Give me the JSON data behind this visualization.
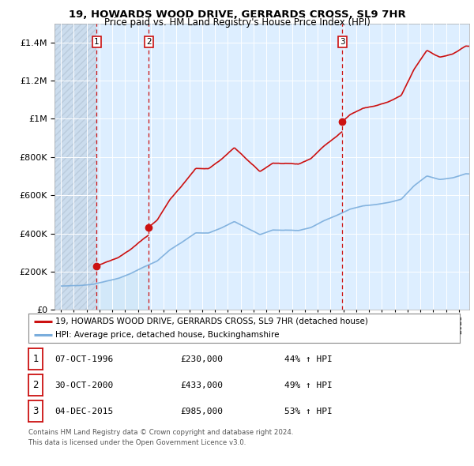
{
  "title": "19, HOWARDS WOOD DRIVE, GERRARDS CROSS, SL9 7HR",
  "subtitle": "Price paid vs. HM Land Registry's House Price Index (HPI)",
  "legend_line1": "19, HOWARDS WOOD DRIVE, GERRARDS CROSS, SL9 7HR (detached house)",
  "legend_line2": "HPI: Average price, detached house, Buckinghamshire",
  "footer1": "Contains HM Land Registry data © Crown copyright and database right 2024.",
  "footer2": "This data is licensed under the Open Government Licence v3.0.",
  "transactions": [
    {
      "num": 1,
      "date": "07-OCT-1996",
      "price": 230000,
      "hpi_pct": "44% ↑ HPI",
      "year": 1996.77
    },
    {
      "num": 2,
      "date": "30-OCT-2000",
      "price": 433000,
      "hpi_pct": "49% ↑ HPI",
      "year": 2000.83
    },
    {
      "num": 3,
      "date": "04-DEC-2015",
      "price": 985000,
      "hpi_pct": "53% ↑ HPI",
      "year": 2015.92
    }
  ],
  "hpi_color": "#7aaddc",
  "price_color": "#cc1111",
  "vline_color": "#cc1111",
  "dot_color": "#cc1111",
  "fill_color": "#cce0f0",
  "ylim": [
    0,
    1500000
  ],
  "yticks": [
    0,
    200000,
    400000,
    600000,
    800000,
    1000000,
    1200000,
    1400000
  ],
  "xmin": 1993.5,
  "xmax": 2025.8,
  "hatch_xmax": 1996.77,
  "background_color": "#ffffff",
  "plot_bg": "#ddeeff"
}
